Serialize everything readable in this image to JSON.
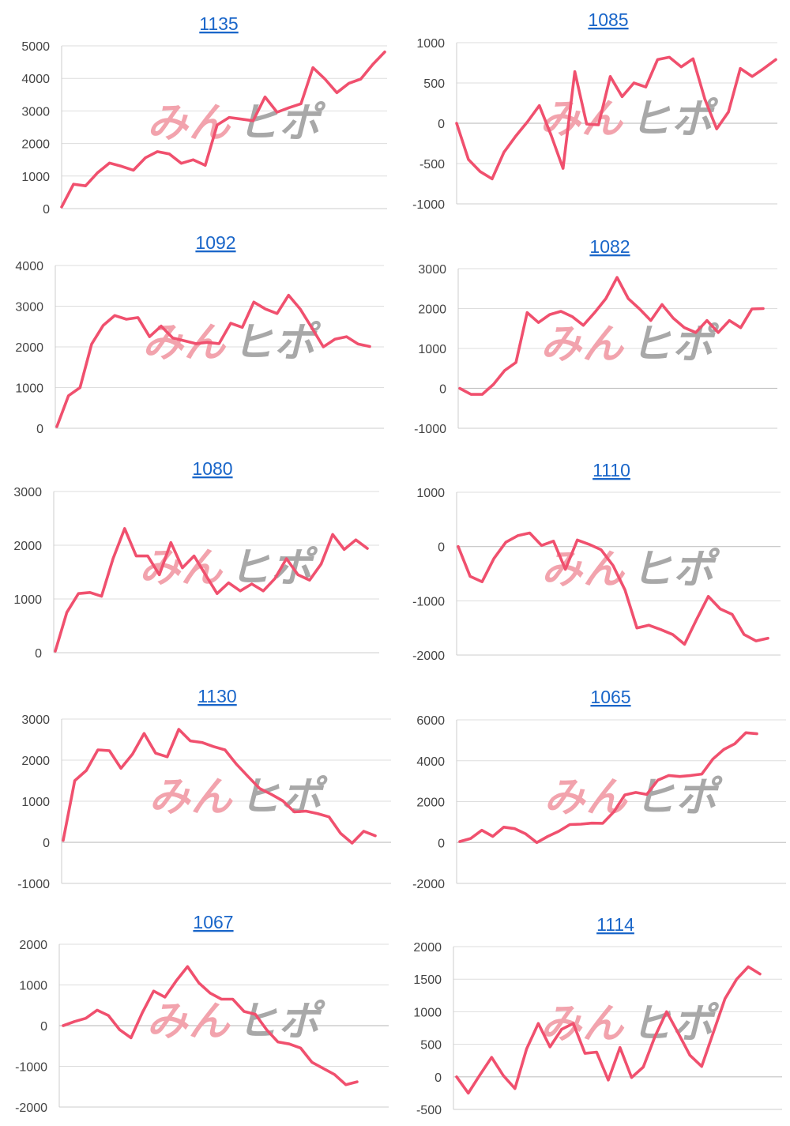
{
  "colors": {
    "series": "#f0506e",
    "title_link": "#1a66c9"
  },
  "watermark": {
    "part1": "みん",
    "part2": "ヒポ",
    "color1": "#f2a3ad",
    "color2": "#a8a8a8"
  },
  "chart_data": [
    {
      "type": "line",
      "title": "1135",
      "ylim": [
        0,
        5000
      ],
      "yticks": [
        "5000",
        "4000",
        "3000",
        "2000",
        "1000",
        "0"
      ],
      "tick_values": [
        5000,
        4000,
        3000,
        2000,
        1000,
        0
      ],
      "values": [
        50,
        750,
        700,
        1100,
        1400,
        1300,
        1180,
        1560,
        1750,
        1680,
        1390,
        1500,
        1330,
        2570,
        2800,
        2750,
        2700,
        3430,
        2960,
        3100,
        3220,
        4330,
        3980,
        3560,
        3850,
        3980,
        4430,
        4810
      ]
    },
    {
      "type": "line",
      "title": "1085",
      "ylim": [
        -1000,
        1000
      ],
      "yticks": [
        "1000",
        "500",
        "0",
        "-500",
        "-1000"
      ],
      "tick_values": [
        1000,
        500,
        0,
        -500,
        -1000
      ],
      "values": [
        0,
        -450,
        -600,
        -690,
        -360,
        -160,
        20,
        220,
        -150,
        -560,
        640,
        -10,
        -20,
        580,
        330,
        500,
        450,
        790,
        820,
        700,
        800,
        300,
        -70,
        140,
        680,
        580,
        680,
        790
      ]
    },
    {
      "type": "line",
      "title": "1092",
      "ylim": [
        0,
        4000
      ],
      "yticks": [
        "4000",
        "3000",
        "2000",
        "1000",
        "0"
      ],
      "tick_values": [
        4000,
        3000,
        2000,
        1000,
        0
      ],
      "values": [
        40,
        800,
        1000,
        2070,
        2530,
        2770,
        2680,
        2720,
        2250,
        2510,
        2220,
        2150,
        2080,
        2110,
        2080,
        2580,
        2480,
        3100,
        2930,
        2820,
        3270,
        2930,
        2470,
        2000,
        2190,
        2250,
        2070,
        2010
      ]
    },
    {
      "type": "line",
      "title": "1082",
      "ylim": [
        -1000,
        3000
      ],
      "yticks": [
        "3000",
        "2000",
        "1000",
        "0",
        "-1000"
      ],
      "tick_values": [
        3000,
        2000,
        1000,
        0,
        -1000
      ],
      "values": [
        0,
        -150,
        -150,
        100,
        450,
        650,
        1900,
        1650,
        1850,
        1930,
        1800,
        1580,
        1900,
        2250,
        2780,
        2250,
        1990,
        1700,
        2100,
        1760,
        1520,
        1400,
        1700,
        1400,
        1700,
        1520,
        1990,
        2000
      ]
    },
    {
      "type": "line",
      "title": "1080",
      "ylim": [
        0,
        3000
      ],
      "yticks": [
        "3000",
        "2000",
        "1000",
        "0"
      ],
      "tick_values": [
        3000,
        2000,
        1000,
        0
      ],
      "values": [
        30,
        750,
        1100,
        1120,
        1050,
        1750,
        2310,
        1800,
        1800,
        1450,
        2050,
        1580,
        1800,
        1450,
        1100,
        1300,
        1150,
        1280,
        1150,
        1380,
        1750,
        1450,
        1350,
        1650,
        2200,
        1920,
        2100,
        1940
      ]
    },
    {
      "type": "line",
      "title": "1110",
      "ylim": [
        -2000,
        1000
      ],
      "yticks": [
        "1000",
        "0",
        "-1000",
        "-2000"
      ],
      "tick_values": [
        1000,
        0,
        -1000,
        -2000
      ],
      "values": [
        0,
        -550,
        -650,
        -220,
        80,
        200,
        250,
        20,
        100,
        -420,
        120,
        40,
        -60,
        -350,
        -800,
        -1500,
        -1450,
        -1530,
        -1620,
        -1800,
        -1350,
        -920,
        -1150,
        -1250,
        -1620,
        -1740,
        -1690
      ]
    },
    {
      "type": "line",
      "title": "1130",
      "ylim": [
        -1000,
        3000
      ],
      "yticks": [
        "3000",
        "2000",
        "1000",
        "0",
        "-1000"
      ],
      "tick_values": [
        3000,
        2000,
        1000,
        0,
        -1000
      ],
      "values": [
        50,
        1500,
        1750,
        2250,
        2230,
        1800,
        2150,
        2650,
        2170,
        2080,
        2750,
        2470,
        2430,
        2330,
        2250,
        1900,
        1600,
        1310,
        1170,
        1010,
        740,
        760,
        700,
        620,
        220,
        -20,
        270,
        160
      ]
    },
    {
      "type": "line",
      "title": "1065",
      "ylim": [
        -2000,
        6000
      ],
      "yticks": [
        "6000",
        "4000",
        "2000",
        "0",
        "-2000"
      ],
      "tick_values": [
        6000,
        4000,
        2000,
        0,
        -2000
      ],
      "values": [
        50,
        200,
        600,
        300,
        750,
        680,
        420,
        0,
        300,
        550,
        880,
        900,
        950,
        940,
        1500,
        2330,
        2450,
        2350,
        3050,
        3280,
        3230,
        3280,
        3350,
        4080,
        4550,
        4830,
        5370,
        5320
      ]
    },
    {
      "type": "line",
      "title": "1067",
      "ylim": [
        -2000,
        2000
      ],
      "yticks": [
        "2000",
        "1000",
        "0",
        "-1000",
        "-2000"
      ],
      "tick_values": [
        2000,
        1000,
        0,
        -1000,
        -2000
      ],
      "values": [
        0,
        100,
        180,
        380,
        250,
        -100,
        -300,
        320,
        850,
        700,
        1100,
        1450,
        1050,
        800,
        650,
        650,
        350,
        280,
        -100,
        -400,
        -450,
        -550,
        -900,
        -1050,
        -1200,
        -1450,
        -1380
      ]
    },
    {
      "type": "line",
      "title": "1114",
      "ylim": [
        -500,
        2000
      ],
      "yticks": [
        "2000",
        "1500",
        "1000",
        "500",
        "0",
        "-500"
      ],
      "tick_values": [
        2000,
        1500,
        1000,
        500,
        0,
        -500
      ],
      "values": [
        0,
        -250,
        30,
        300,
        20,
        -180,
        430,
        820,
        460,
        730,
        820,
        360,
        380,
        -50,
        450,
        -10,
        150,
        620,
        1000,
        670,
        330,
        160,
        680,
        1200,
        1500,
        1690,
        1580
      ]
    }
  ]
}
